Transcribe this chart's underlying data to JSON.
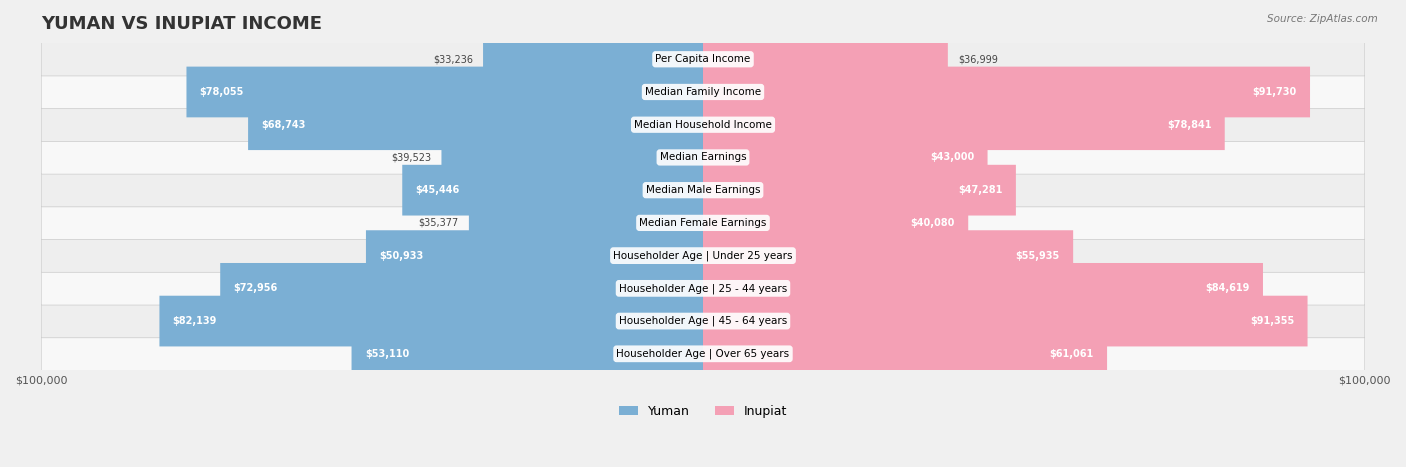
{
  "title": "YUMAN VS INUPIAT INCOME",
  "source": "Source: ZipAtlas.com",
  "categories": [
    "Per Capita Income",
    "Median Family Income",
    "Median Household Income",
    "Median Earnings",
    "Median Male Earnings",
    "Median Female Earnings",
    "Householder Age | Under 25 years",
    "Householder Age | 25 - 44 years",
    "Householder Age | 45 - 64 years",
    "Householder Age | Over 65 years"
  ],
  "yuman_values": [
    33236,
    78055,
    68743,
    39523,
    45446,
    35377,
    50933,
    72956,
    82139,
    53110
  ],
  "inupiat_values": [
    36999,
    91730,
    78841,
    43000,
    47281,
    40080,
    55935,
    84619,
    91355,
    61061
  ],
  "yuman_labels": [
    "$33,236",
    "$78,055",
    "$68,743",
    "$39,523",
    "$45,446",
    "$35,377",
    "$50,933",
    "$72,956",
    "$82,139",
    "$53,110"
  ],
  "inupiat_labels": [
    "$36,999",
    "$91,730",
    "$78,841",
    "$43,000",
    "$47,281",
    "$40,080",
    "$55,935",
    "$84,619",
    "$91,355",
    "$61,061"
  ],
  "yuman_color": "#7bafd4",
  "yuman_color_dark": "#6b9fc4",
  "inupiat_color": "#f4a0b5",
  "inupiat_color_dark": "#e07090",
  "max_value": 100000,
  "bar_height": 0.55,
  "bg_color": "#f0f0f0",
  "row_bg_light": "#f8f8f8",
  "row_bg_dark": "#eeeeee"
}
